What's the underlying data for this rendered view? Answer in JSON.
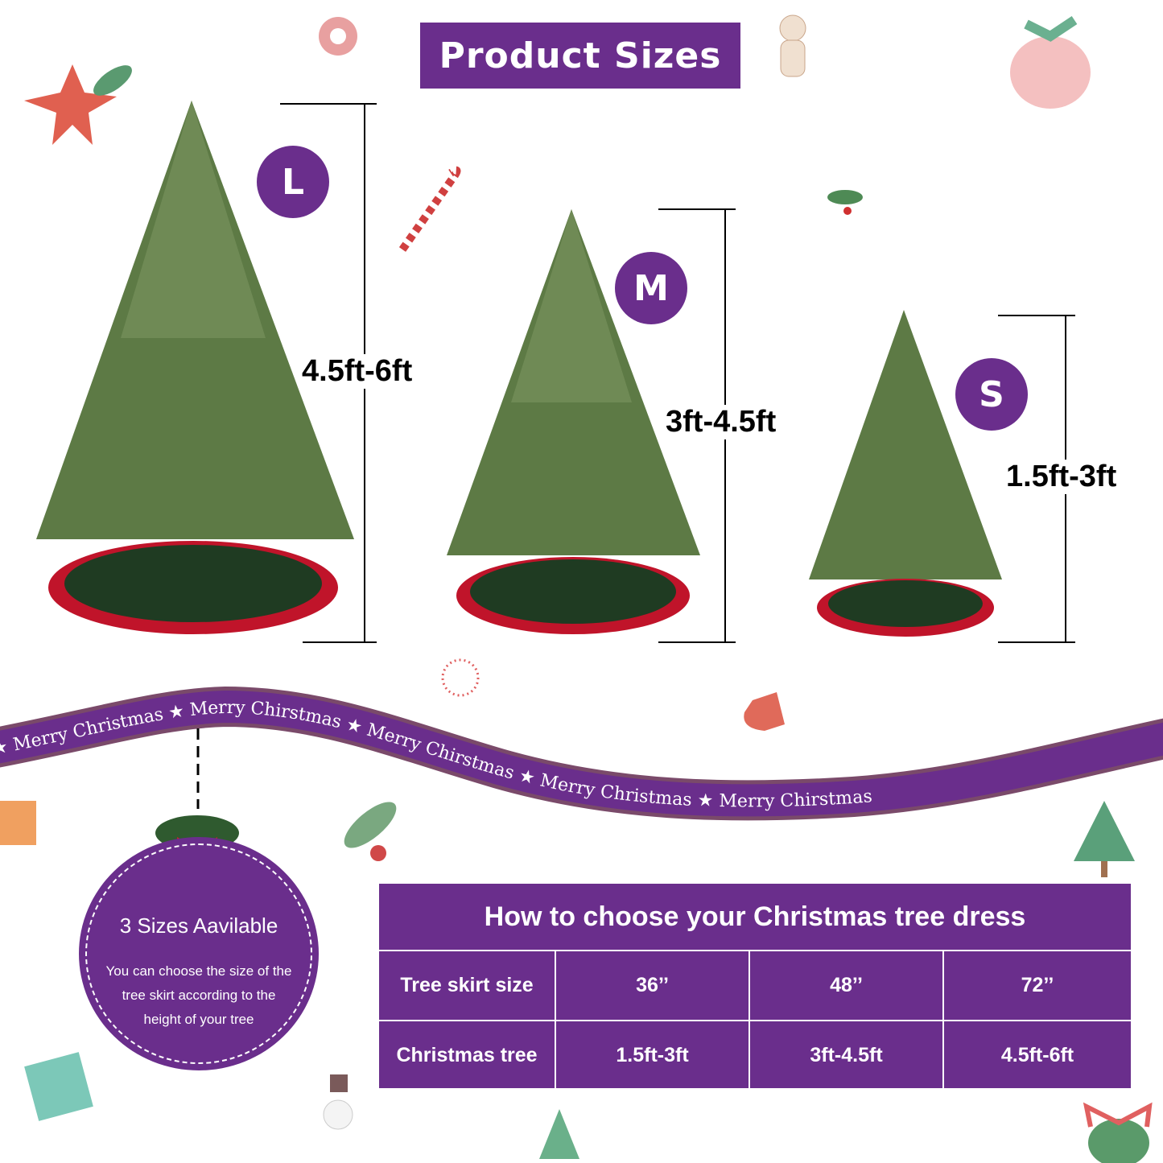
{
  "title": "Product Sizes",
  "sizes": [
    {
      "badge": "L",
      "range": "4.5ft-6ft"
    },
    {
      "badge": "M",
      "range": "3ft-4.5ft"
    },
    {
      "badge": "S",
      "range": "1.5ft-3ft"
    }
  ],
  "ribbon": [
    "Merry Christmas",
    "Merry Chirstmas",
    "Merry Chirstmas",
    "Merry Christmas",
    "Merry Chirstmas"
  ],
  "info_circle": {
    "title": "3 Sizes Aavilable",
    "lines": [
      "You can choose the size of the",
      "tree skirt according to the",
      "height of your tree"
    ]
  },
  "table": {
    "title": "How to choose your Christmas tree dress",
    "rows": [
      {
        "label": "Tree skirt size",
        "values": [
          "36’’",
          "48’’",
          "72’’"
        ]
      },
      {
        "label": "Christmas tree",
        "values": [
          "1.5ft-3ft",
          "3ft-4.5ft",
          "4.5ft-6ft"
        ]
      }
    ]
  },
  "colors": {
    "brand_purple": "#6a2e8c",
    "tree_green": "#5d7a45",
    "skirt_red": "#c0142a",
    "skirt_green": "#1f3b22"
  }
}
